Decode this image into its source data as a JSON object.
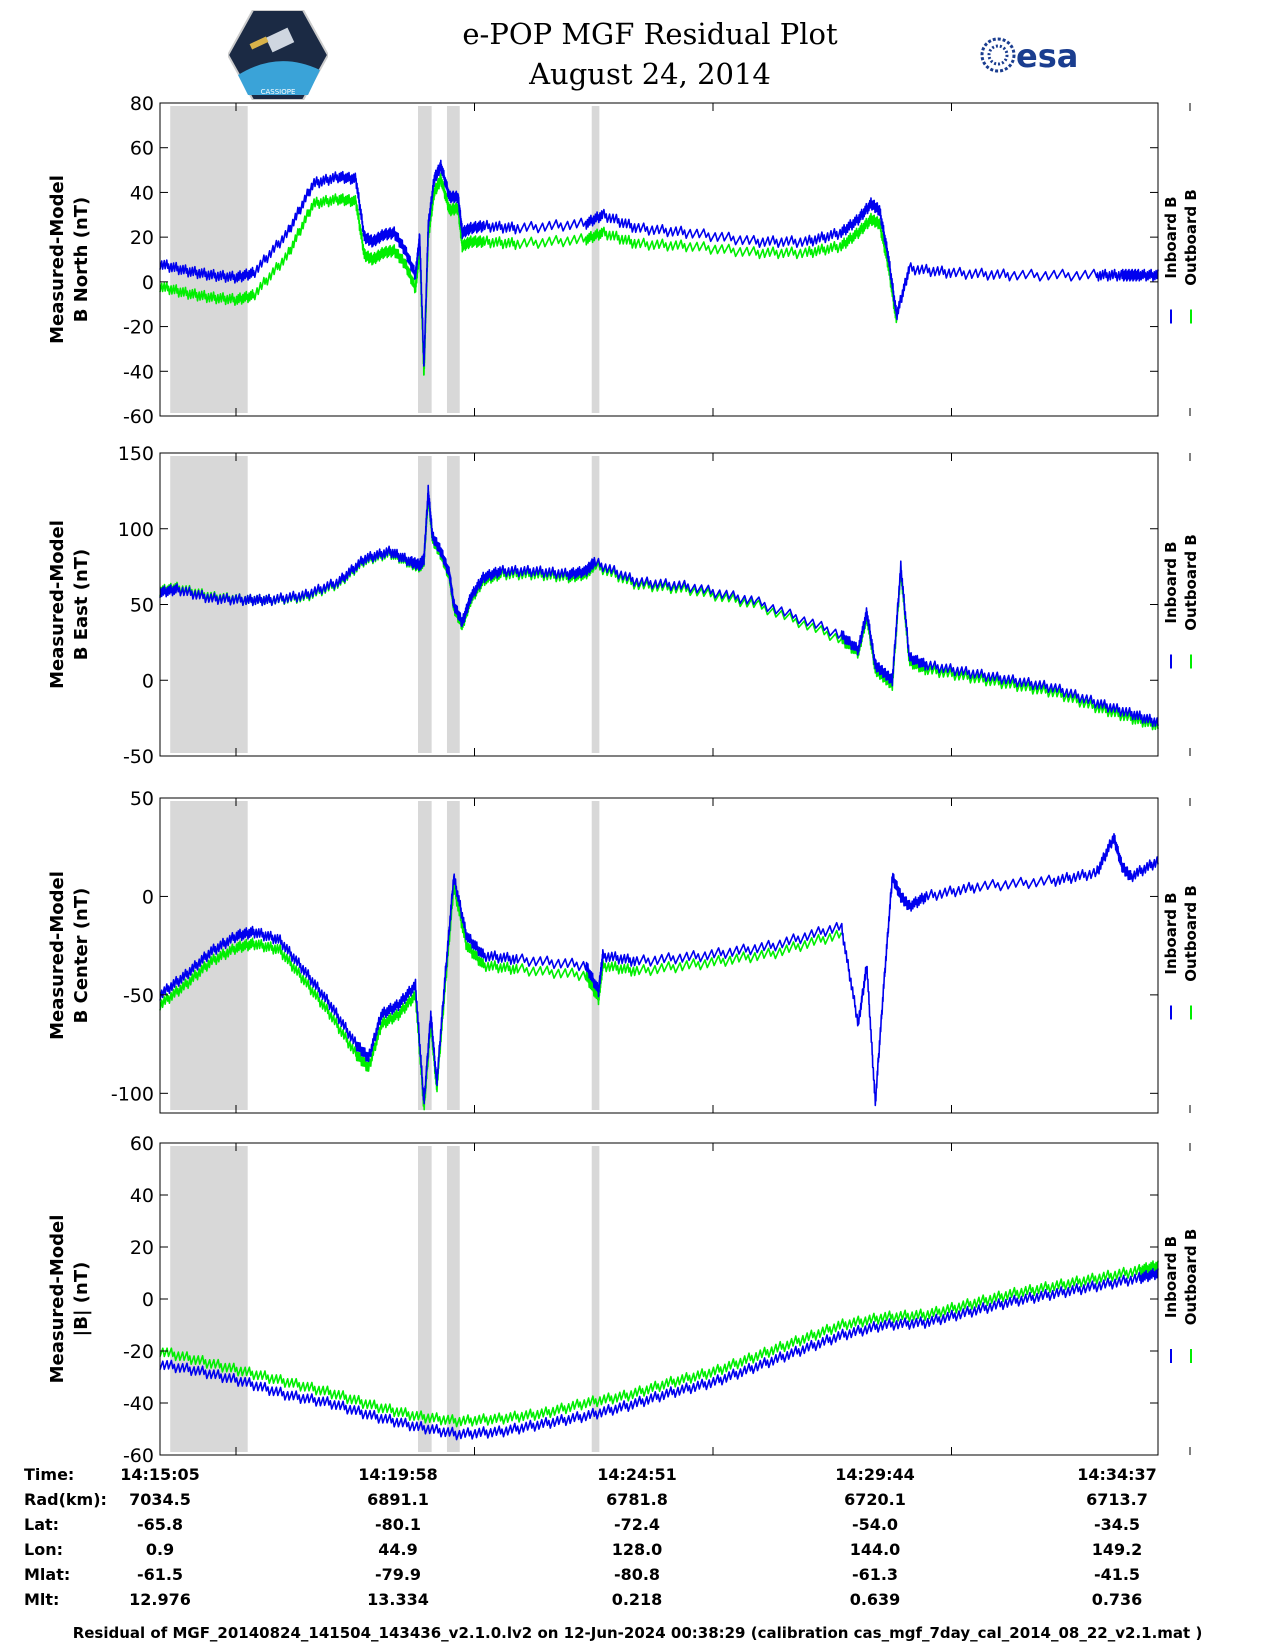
{
  "header": {
    "title_line1": "e-POP MGF Residual Plot",
    "title_line2": "August 24, 2014",
    "logo_left": "CASSIOPE",
    "logo_right": "esa",
    "logo_left_icon": "cassiope-satellite-logo",
    "logo_right_icon": "esa-logo",
    "esa_color": "#1a3d8f"
  },
  "colors": {
    "inboard": "#0000ee",
    "outboard": "#00ee00",
    "shade": "#d8d8d8"
  },
  "legend": {
    "inboard": "Inboard B",
    "outboard": "Outboard B"
  },
  "chart_data": [
    {
      "type": "line",
      "ylabel_line1": "Measured-Model",
      "ylabel_line2": "B North (nT)",
      "ylim": [
        -60,
        80
      ],
      "yticks": [
        80,
        60,
        40,
        20,
        0,
        -20,
        -40,
        -60
      ],
      "x_range_s": [
        0,
        1172
      ],
      "shaded_intervals_s": [
        [
          12,
          103
        ],
        [
          303,
          319
        ],
        [
          337,
          352
        ],
        [
          507,
          516
        ]
      ],
      "series": [
        {
          "name": "Inboard B",
          "x": [
            0,
            30,
            60,
            90,
            110,
            150,
            180,
            210,
            230,
            240,
            250,
            262,
            275,
            288,
            300,
            305,
            310,
            315,
            322,
            330,
            340,
            350,
            355,
            365,
            380,
            420,
            500,
            520,
            560,
            620,
            700,
            760,
            800,
            820,
            835,
            845,
            855,
            865,
            880,
            930,
            1000,
            1100,
            1130,
            1140,
            1150,
            1172
          ],
          "y": [
            8,
            5,
            3,
            2,
            4,
            22,
            44,
            47,
            46,
            20,
            18,
            21,
            22,
            14,
            3,
            20,
            -38,
            25,
            46,
            52,
            38,
            38,
            22,
            24,
            25,
            24,
            26,
            30,
            24,
            22,
            18,
            18,
            22,
            28,
            35,
            32,
            12,
            -15,
            6,
            4,
            3,
            3,
            3,
            3,
            3,
            3
          ]
        },
        {
          "name": "Outboard B",
          "x": [
            0,
            30,
            60,
            90,
            110,
            150,
            180,
            210,
            230,
            240,
            250,
            262,
            275,
            288,
            300,
            305,
            310,
            315,
            322,
            330,
            340,
            350,
            355,
            365,
            380,
            420,
            500,
            520,
            560,
            620,
            700,
            760,
            800,
            820,
            835,
            845,
            855,
            865
          ],
          "y": [
            -2,
            -5,
            -7,
            -8,
            -6,
            12,
            35,
            37,
            36,
            12,
            10,
            13,
            14,
            8,
            -3,
            14,
            -42,
            20,
            40,
            46,
            32,
            33,
            16,
            18,
            18,
            17,
            19,
            22,
            17,
            16,
            13,
            13,
            16,
            22,
            28,
            26,
            8,
            -18
          ]
        }
      ]
    },
    {
      "type": "line",
      "ylabel_line1": "Measured-Model",
      "ylabel_line2": "B East (nT)",
      "ylim": [
        -50,
        150
      ],
      "yticks": [
        150,
        100,
        50,
        0,
        -50
      ],
      "x_range_s": [
        0,
        1172
      ],
      "shaded_intervals_s": [
        [
          12,
          103
        ],
        [
          303,
          319
        ],
        [
          337,
          352
        ],
        [
          507,
          516
        ]
      ],
      "series": [
        {
          "name": "Inboard B",
          "x": [
            0,
            20,
            60,
            100,
            130,
            170,
            210,
            240,
            270,
            295,
            305,
            310,
            315,
            320,
            330,
            340,
            345,
            355,
            365,
            380,
            400,
            440,
            480,
            500,
            510,
            560,
            620,
            700,
            800,
            820,
            830,
            840,
            850,
            860,
            870,
            880,
            900,
            950,
            1000,
            1050,
            1100,
            1140,
            1172
          ],
          "y": [
            58,
            60,
            54,
            53,
            53,
            56,
            65,
            80,
            85,
            78,
            76,
            80,
            125,
            95,
            85,
            70,
            50,
            38,
            55,
            68,
            72,
            72,
            70,
            72,
            78,
            65,
            62,
            52,
            30,
            20,
            45,
            10,
            5,
            0,
            75,
            15,
            10,
            5,
            0,
            -5,
            -15,
            -22,
            -28
          ]
        },
        {
          "name": "Outboard B",
          "x": [
            0,
            20,
            60,
            100,
            130,
            170,
            210,
            240,
            270,
            295,
            305,
            310,
            315,
            320,
            330,
            340,
            345,
            355,
            365,
            380,
            400,
            440,
            480,
            500,
            510,
            560,
            620,
            700,
            800,
            820,
            830,
            840,
            850,
            860,
            870,
            880,
            900,
            950,
            1000,
            1050,
            1100,
            1140,
            1172
          ],
          "y": [
            59,
            61,
            55,
            53,
            53,
            55,
            64,
            79,
            84,
            77,
            75,
            79,
            122,
            93,
            83,
            68,
            48,
            36,
            53,
            66,
            70,
            70,
            68,
            70,
            76,
            63,
            60,
            50,
            27,
            18,
            42,
            7,
            2,
            -3,
            72,
            12,
            7,
            2,
            -3,
            -8,
            -18,
            -25,
            -30
          ]
        }
      ]
    },
    {
      "type": "line",
      "ylabel_line1": "Measured-Model",
      "ylabel_line2": "B Center (nT)",
      "ylim": [
        -110,
        50
      ],
      "yticks": [
        50,
        0,
        -50,
        -100
      ],
      "x_range_s": [
        0,
        1172
      ],
      "shaded_intervals_s": [
        [
          12,
          103
        ],
        [
          303,
          319
        ],
        [
          337,
          352
        ],
        [
          507,
          516
        ]
      ],
      "series": [
        {
          "name": "Inboard B",
          "x": [
            0,
            30,
            60,
            90,
            110,
            140,
            170,
            200,
            230,
            245,
            260,
            280,
            300,
            310,
            318,
            325,
            335,
            345,
            360,
            380,
            420,
            500,
            515,
            520,
            560,
            640,
            720,
            800,
            820,
            830,
            840,
            850,
            860,
            870,
            880,
            900,
            960,
            1050,
            1100,
            1120,
            1130,
            1140,
            1172
          ],
          "y": [
            -50,
            -40,
            -28,
            -20,
            -18,
            -22,
            -38,
            -55,
            -75,
            -82,
            -60,
            -55,
            -45,
            -105,
            -60,
            -95,
            -40,
            10,
            -20,
            -30,
            -32,
            -35,
            -48,
            -30,
            -33,
            -30,
            -25,
            -15,
            -65,
            -35,
            -105,
            -45,
            10,
            0,
            -5,
            0,
            5,
            8,
            12,
            30,
            15,
            10,
            18
          ]
        },
        {
          "name": "Outboard B",
          "x": [
            0,
            30,
            60,
            90,
            110,
            140,
            170,
            200,
            230,
            245,
            260,
            280,
            300,
            310,
            318,
            325,
            335,
            345,
            360,
            380,
            420,
            500,
            515,
            520,
            560,
            640,
            720,
            800
          ],
          "y": [
            -55,
            -45,
            -33,
            -26,
            -24,
            -27,
            -43,
            -60,
            -80,
            -87,
            -65,
            -60,
            -50,
            -108,
            -65,
            -98,
            -45,
            5,
            -25,
            -35,
            -37,
            -40,
            -52,
            -35,
            -38,
            -34,
            -29,
            -19
          ]
        }
      ]
    },
    {
      "type": "line",
      "ylabel_line1": "Measured-Model",
      "ylabel_line2": "|B| (nT)",
      "ylim": [
        -60,
        60
      ],
      "yticks": [
        60,
        40,
        20,
        0,
        -20,
        -40,
        -60
      ],
      "x_range_s": [
        0,
        1172
      ],
      "shaded_intervals_s": [
        [
          12,
          103
        ],
        [
          303,
          319
        ],
        [
          337,
          352
        ],
        [
          507,
          516
        ]
      ],
      "series": [
        {
          "name": "Inboard B",
          "x": [
            0,
            50,
            100,
            150,
            200,
            250,
            300,
            350,
            400,
            450,
            500,
            550,
            600,
            650,
            700,
            750,
            800,
            850,
            900,
            950,
            1000,
            1050,
            1100,
            1150,
            1172
          ],
          "y": [
            -25,
            -28,
            -32,
            -37,
            -40,
            -45,
            -49,
            -52,
            -51,
            -48,
            -45,
            -41,
            -36,
            -32,
            -26,
            -20,
            -14,
            -10,
            -9,
            -5,
            -1,
            2,
            5,
            8,
            10
          ]
        },
        {
          "name": "Outboard B",
          "x": [
            0,
            50,
            100,
            150,
            200,
            250,
            300,
            350,
            400,
            450,
            500,
            550,
            600,
            650,
            700,
            750,
            800,
            850,
            900,
            950,
            1000,
            1050,
            1100,
            1150,
            1172
          ],
          "y": [
            -20,
            -24,
            -28,
            -32,
            -36,
            -41,
            -45,
            -47,
            -46,
            -44,
            -40,
            -37,
            -32,
            -28,
            -22,
            -16,
            -10,
            -7,
            -6,
            -2,
            2,
            5,
            8,
            11,
            13
          ]
        }
      ]
    }
  ],
  "footer": {
    "labels": [
      "Time:",
      "Rad(km):",
      "Lat:",
      "Lon:",
      "Mlat:",
      "Mlt:"
    ],
    "columns": [
      [
        "14:15:05",
        "7034.5",
        "-65.8",
        "0.9",
        "-61.5",
        "12.976"
      ],
      [
        "14:19:58",
        "6891.1",
        "-80.1",
        "44.9",
        "-79.9",
        "13.334"
      ],
      [
        "14:24:51",
        "6781.8",
        "-72.4",
        "128.0",
        "-80.8",
        "0.218"
      ],
      [
        "14:29:44",
        "6720.1",
        "-54.0",
        "144.0",
        "-61.3",
        "0.639"
      ],
      [
        "14:34:37",
        "6713.7",
        "-34.5",
        "149.2",
        "-41.5",
        "0.736"
      ]
    ],
    "caption": "Residual of MGF_20140824_141504_143436_v2.1.0.lv2 on 12-Jun-2024 00:38:29 (calibration cas_mgf_7day_cal_2014_08_22_v2.1.mat )"
  }
}
